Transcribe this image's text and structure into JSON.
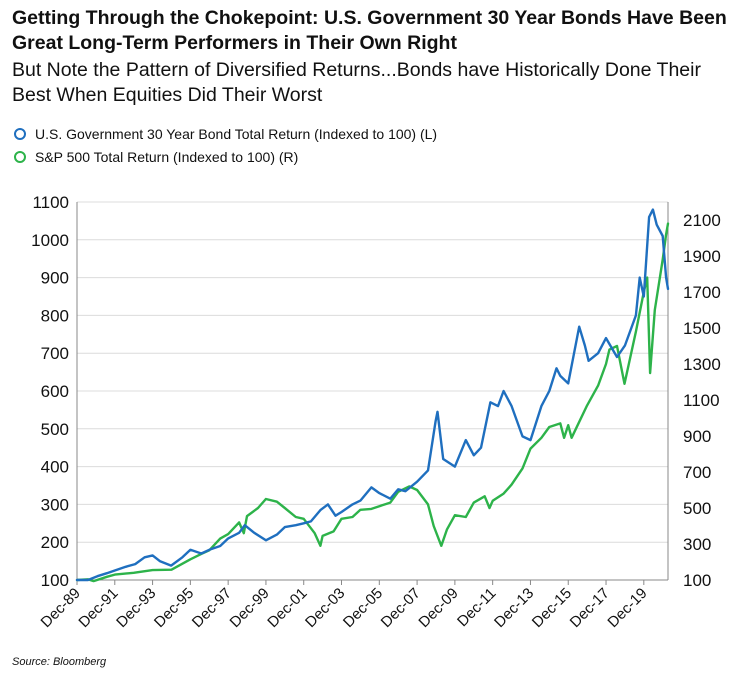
{
  "title": "Getting Through the Chokepoint: U.S. Government 30 Year Bonds Have Been Great Long-Term Performers in Their Own Right",
  "subtitle": "But Note the Pattern of Diversified Returns...Bonds have Historically Done Their Best When Equities Did Their Worst",
  "source": "Source: Bloomberg",
  "colors": {
    "bond": "#1f6fbf",
    "spx": "#2db34a",
    "grid": "#dcdcdc"
  },
  "legend": [
    {
      "label": "U.S. Government 30 Year Bond Total Return (Indexed to 100) (L)",
      "color": "#1f6fbf"
    },
    {
      "label": "S&P 500 Total Return (Indexed to 100) (R)",
      "color": "#2db34a"
    }
  ],
  "chart_data": {
    "type": "line",
    "x_range": [
      1989.92,
      2021.2
    ],
    "x_ticks": [
      "Dec-89",
      "Dec-91",
      "Dec-93",
      "Dec-95",
      "Dec-97",
      "Dec-99",
      "Dec-01",
      "Dec-03",
      "Dec-05",
      "Dec-07",
      "Dec-09",
      "Dec-11",
      "Dec-13",
      "Dec-15",
      "Dec-17",
      "Dec-19"
    ],
    "y_left": {
      "range": [
        100,
        1100
      ],
      "ticks": [
        100,
        200,
        300,
        400,
        500,
        600,
        700,
        800,
        900,
        1000,
        1100
      ]
    },
    "y_right": {
      "range": [
        100,
        2200
      ],
      "ticks": [
        100,
        300,
        500,
        700,
        900,
        1100,
        1300,
        1500,
        1700,
        1900,
        2100
      ]
    },
    "grid": "horizontal",
    "series": [
      {
        "name": "U.S. Government 30 Year Bond Total Return (Indexed to 100) (L)",
        "axis": "left",
        "points": [
          [
            1989.92,
            100
          ],
          [
            1990.5,
            100
          ],
          [
            1991.0,
            110
          ],
          [
            1991.5,
            118
          ],
          [
            1991.92,
            125
          ],
          [
            1992.5,
            135
          ],
          [
            1993.0,
            142
          ],
          [
            1993.5,
            160
          ],
          [
            1993.92,
            165
          ],
          [
            1994.3,
            150
          ],
          [
            1994.9,
            138
          ],
          [
            1995.5,
            160
          ],
          [
            1995.92,
            180
          ],
          [
            1996.5,
            170
          ],
          [
            1996.92,
            180
          ],
          [
            1997.5,
            190
          ],
          [
            1997.92,
            210
          ],
          [
            1998.5,
            225
          ],
          [
            1998.8,
            245
          ],
          [
            1999.3,
            225
          ],
          [
            1999.92,
            205
          ],
          [
            2000.5,
            220
          ],
          [
            2000.92,
            240
          ],
          [
            2001.5,
            245
          ],
          [
            2001.92,
            250
          ],
          [
            2002.3,
            255
          ],
          [
            2002.8,
            285
          ],
          [
            2003.2,
            300
          ],
          [
            2003.6,
            270
          ],
          [
            2003.92,
            280
          ],
          [
            2004.5,
            300
          ],
          [
            2004.92,
            310
          ],
          [
            2005.5,
            345
          ],
          [
            2005.92,
            330
          ],
          [
            2006.5,
            315
          ],
          [
            2006.92,
            340
          ],
          [
            2007.3,
            335
          ],
          [
            2007.92,
            360
          ],
          [
            2008.5,
            390
          ],
          [
            2008.9,
            520
          ],
          [
            2009.0,
            545
          ],
          [
            2009.3,
            420
          ],
          [
            2009.92,
            400
          ],
          [
            2010.5,
            470
          ],
          [
            2010.92,
            430
          ],
          [
            2011.3,
            450
          ],
          [
            2011.8,
            570
          ],
          [
            2012.2,
            560
          ],
          [
            2012.5,
            600
          ],
          [
            2012.92,
            560
          ],
          [
            2013.5,
            480
          ],
          [
            2013.92,
            470
          ],
          [
            2014.5,
            560
          ],
          [
            2014.92,
            600
          ],
          [
            2015.3,
            660
          ],
          [
            2015.5,
            640
          ],
          [
            2015.92,
            620
          ],
          [
            2016.5,
            770
          ],
          [
            2016.8,
            720
          ],
          [
            2017.0,
            680
          ],
          [
            2017.5,
            700
          ],
          [
            2017.92,
            740
          ],
          [
            2018.5,
            690
          ],
          [
            2018.92,
            720
          ],
          [
            2019.5,
            800
          ],
          [
            2019.7,
            900
          ],
          [
            2019.92,
            850
          ],
          [
            2020.2,
            1060
          ],
          [
            2020.4,
            1080
          ],
          [
            2020.6,
            1040
          ],
          [
            2020.92,
            1010
          ],
          [
            2021.1,
            900
          ],
          [
            2021.2,
            870
          ]
        ]
      },
      {
        "name": "S&P 500 Total Return (Indexed to 100) (R)",
        "axis": "right",
        "points": [
          [
            1989.92,
            100
          ],
          [
            1990.5,
            104
          ],
          [
            1990.8,
            94
          ],
          [
            1991.5,
            118
          ],
          [
            1991.92,
            130
          ],
          [
            1992.92,
            140
          ],
          [
            1993.92,
            155
          ],
          [
            1994.92,
            157
          ],
          [
            1995.92,
            215
          ],
          [
            1996.5,
            245
          ],
          [
            1996.92,
            265
          ],
          [
            1997.5,
            330
          ],
          [
            1997.92,
            355
          ],
          [
            1998.5,
            420
          ],
          [
            1998.75,
            360
          ],
          [
            1998.92,
            455
          ],
          [
            1999.5,
            500
          ],
          [
            1999.92,
            550
          ],
          [
            2000.5,
            535
          ],
          [
            2000.92,
            500
          ],
          [
            2001.5,
            450
          ],
          [
            2001.92,
            440
          ],
          [
            2002.5,
            360
          ],
          [
            2002.8,
            290
          ],
          [
            2002.92,
            345
          ],
          [
            2003.5,
            370
          ],
          [
            2003.92,
            440
          ],
          [
            2004.5,
            450
          ],
          [
            2004.92,
            490
          ],
          [
            2005.5,
            495
          ],
          [
            2005.92,
            510
          ],
          [
            2006.5,
            530
          ],
          [
            2006.92,
            590
          ],
          [
            2007.5,
            620
          ],
          [
            2007.92,
            600
          ],
          [
            2008.5,
            520
          ],
          [
            2008.8,
            400
          ],
          [
            2009.2,
            290
          ],
          [
            2009.5,
            380
          ],
          [
            2009.92,
            460
          ],
          [
            2010.5,
            450
          ],
          [
            2010.92,
            530
          ],
          [
            2011.5,
            565
          ],
          [
            2011.75,
            500
          ],
          [
            2011.92,
            540
          ],
          [
            2012.5,
            580
          ],
          [
            2012.92,
            630
          ],
          [
            2013.5,
            720
          ],
          [
            2013.92,
            830
          ],
          [
            2014.5,
            890
          ],
          [
            2014.92,
            950
          ],
          [
            2015.5,
            970
          ],
          [
            2015.7,
            890
          ],
          [
            2015.92,
            960
          ],
          [
            2016.1,
            890
          ],
          [
            2016.92,
            1070
          ],
          [
            2017.5,
            1180
          ],
          [
            2017.92,
            1300
          ],
          [
            2018.1,
            1380
          ],
          [
            2018.5,
            1400
          ],
          [
            2018.9,
            1190
          ],
          [
            2019.5,
            1480
          ],
          [
            2019.92,
            1700
          ],
          [
            2020.1,
            1780
          ],
          [
            2020.25,
            1250
          ],
          [
            2020.5,
            1600
          ],
          [
            2020.92,
            1880
          ],
          [
            2021.1,
            2020
          ],
          [
            2021.2,
            2080
          ]
        ]
      }
    ]
  }
}
